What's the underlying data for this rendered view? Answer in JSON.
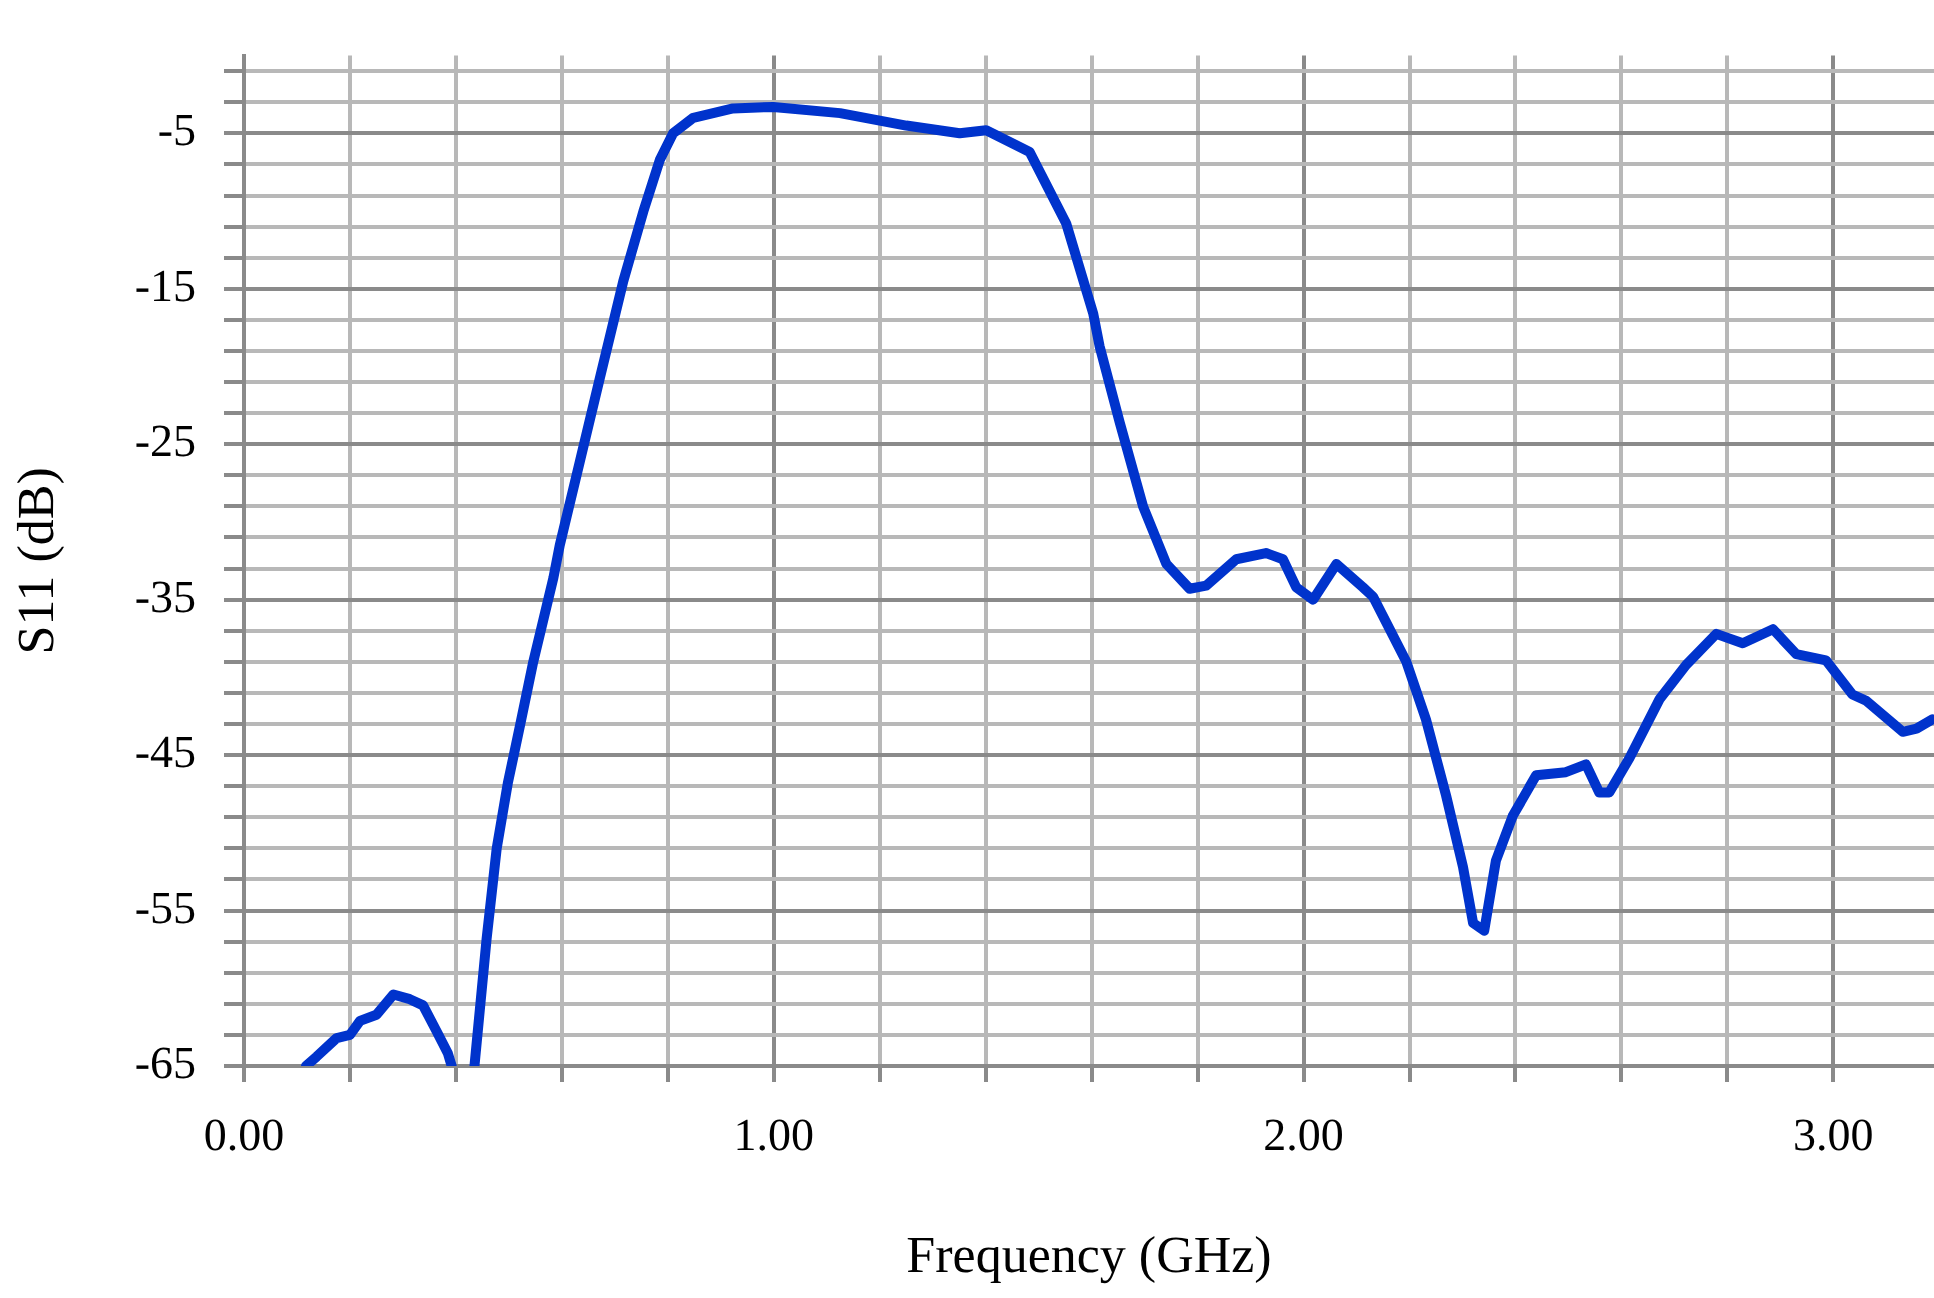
{
  "chart_data": {
    "type": "line",
    "xlabel": "Frequency (GHz)",
    "ylabel": "S11 (dB)",
    "xlim": [
      0,
      3.19
    ],
    "ylim": [
      -65,
      0
    ],
    "xticks": [
      {
        "value": 0,
        "label": "0.00"
      },
      {
        "value": 0.2,
        "label": null
      },
      {
        "value": 0.4,
        "label": null
      },
      {
        "value": 0.6,
        "label": null
      },
      {
        "value": 0.8,
        "label": null
      },
      {
        "value": 1,
        "label": "1.00"
      },
      {
        "value": 1.2,
        "label": null
      },
      {
        "value": 1.4,
        "label": null
      },
      {
        "value": 1.6,
        "label": null
      },
      {
        "value": 1.8,
        "label": null
      },
      {
        "value": 2,
        "label": "2.00"
      },
      {
        "value": 2.2,
        "label": null
      },
      {
        "value": 2.4,
        "label": null
      },
      {
        "value": 2.6,
        "label": null
      },
      {
        "value": 2.8,
        "label": null
      },
      {
        "value": 3,
        "label": "3.00"
      }
    ],
    "yticks": [
      -65,
      {
        "value": -63,
        "label": null
      },
      {
        "value": -61,
        "label": null
      },
      {
        "value": -59,
        "label": null
      },
      {
        "value": -57,
        "label": null
      },
      -55,
      {
        "value": -53,
        "label": null
      },
      {
        "value": -51,
        "label": null
      },
      {
        "value": -49,
        "label": null
      },
      {
        "value": -47,
        "label": null
      },
      -45,
      {
        "value": -43,
        "label": null
      },
      {
        "value": -41,
        "label": null
      },
      {
        "value": -39,
        "label": null
      },
      {
        "value": -37,
        "label": null
      },
      -35,
      {
        "value": -33,
        "label": null
      },
      {
        "value": -31,
        "label": null
      },
      {
        "value": -29,
        "label": null
      },
      {
        "value": -27,
        "label": null
      },
      -25,
      {
        "value": -23,
        "label": null
      },
      {
        "value": -21,
        "label": null
      },
      {
        "value": -19,
        "label": null
      },
      {
        "value": -17,
        "label": null
      },
      -15,
      {
        "value": -13,
        "label": null
      },
      {
        "value": -11,
        "label": null
      },
      {
        "value": -9,
        "label": null
      },
      {
        "value": -7,
        "label": null
      },
      -5,
      {
        "value": -3,
        "label": null
      },
      {
        "value": -1,
        "label": null
      }
    ],
    "grid": true,
    "legend": false,
    "marker": "none",
    "line_style": "solid",
    "series": [
      {
        "color": "#0033cc",
        "x": [
          0.117,
          0.137,
          0.175,
          0.2,
          0.219,
          0.25,
          0.282,
          0.313,
          0.338,
          0.364,
          0.385,
          0.392,
          0.41,
          0.435,
          0.458,
          0.477,
          0.498,
          0.521,
          0.546,
          0.584,
          0.596,
          0.634,
          0.672,
          0.716,
          0.754,
          0.785,
          0.81,
          0.848,
          0.923,
          0.999,
          1.125,
          1.25,
          1.351,
          1.401,
          1.483,
          1.552,
          1.603,
          1.615,
          1.653,
          1.697,
          1.741,
          1.785,
          1.816,
          1.873,
          1.929,
          1.961,
          1.986,
          2.018,
          2.062,
          2.112,
          2.131,
          2.194,
          2.231,
          2.269,
          2.301,
          2.32,
          2.341,
          2.363,
          2.395,
          2.439,
          2.495,
          2.533,
          2.558,
          2.577,
          2.615,
          2.672,
          2.722,
          2.779,
          2.829,
          2.886,
          2.93,
          2.986,
          3.036,
          3.062,
          3.131,
          3.157,
          3.187
        ],
        "values": [
          -65,
          -64.4,
          -63.2,
          -63.0,
          -62.1,
          -61.7,
          -60.4,
          -60.7,
          -61.1,
          -62.8,
          -64.2,
          -65,
          null,
          -65,
          -56.8,
          -51.0,
          -46.8,
          -43.1,
          -39.0,
          -33.6,
          -31.5,
          -26.1,
          -20.7,
          -14.5,
          -10.0,
          -6.7,
          -5.0,
          -4.0,
          -3.4,
          -3.3,
          -3.7,
          -4.5,
          -5.0,
          -4.8,
          -6.2,
          -10.8,
          -16.6,
          -18.7,
          -23.6,
          -29.0,
          -32.7,
          -34.3,
          -34.1,
          -32.4,
          -32.0,
          -32.4,
          -34.2,
          -35.0,
          -32.7,
          -34.2,
          -34.8,
          -39.0,
          -42.7,
          -47.6,
          -52.2,
          -55.8,
          -56.3,
          -51.8,
          -48.9,
          -46.3,
          -46.1,
          -45.6,
          -47.4,
          -47.4,
          -45.2,
          -41.4,
          -39.2,
          -37.2,
          -37.8,
          -36.9,
          -38.5,
          -38.9,
          -41.1,
          -41.5,
          -43.5,
          -43.3,
          -42.7
        ]
      }
    ]
  }
}
